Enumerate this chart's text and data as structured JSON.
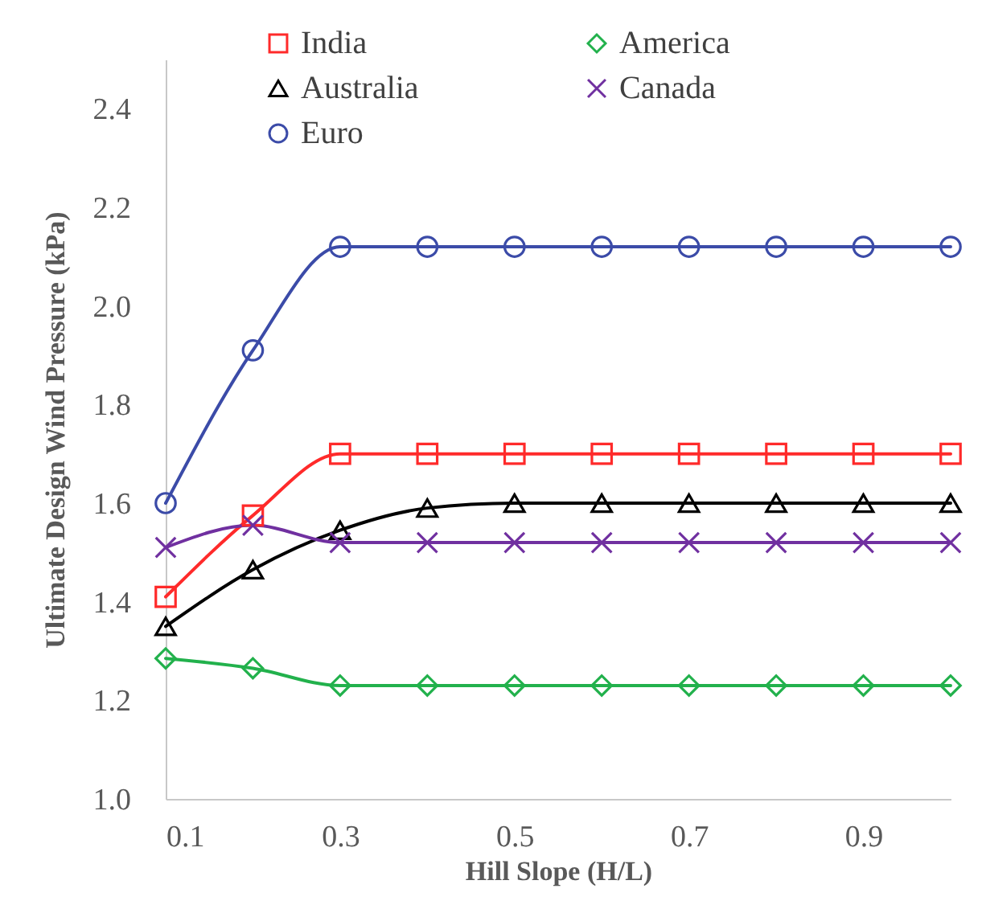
{
  "chart_data": {
    "type": "line",
    "xlabel": "Hill Slope (H/L)",
    "ylabel": "Ultimate Design Wind Pressure (kPa)",
    "x": [
      0.1,
      0.2,
      0.3,
      0.4,
      0.5,
      0.6,
      0.7,
      0.8,
      0.9,
      1.0
    ],
    "xlim": [
      0.1,
      1.0
    ],
    "xticks": [
      0.1,
      0.3,
      0.5,
      0.7,
      0.9
    ],
    "ylim": [
      1.0,
      2.5
    ],
    "yticks": [
      {
        "value": 1.0,
        "label": "1.0"
      },
      1.2,
      1.4,
      1.6,
      1.8,
      {
        "value": 2.0,
        "label": "2.0"
      },
      2.2,
      2.4
    ],
    "grid": false,
    "legend": "top",
    "series": [
      {
        "name": "India",
        "color": "#ff2a2a",
        "marker": "square",
        "values": [
          1.41,
          1.575,
          1.7,
          1.7,
          1.7,
          1.7,
          1.7,
          1.7,
          1.7,
          1.7
        ]
      },
      {
        "name": "America",
        "color": "#22b14c",
        "marker": "diamond",
        "values": [
          1.285,
          1.265,
          1.23,
          1.23,
          1.23,
          1.23,
          1.23,
          1.23,
          1.23,
          1.23
        ]
      },
      {
        "name": "Australia",
        "color": "#000000",
        "marker": "triangle",
        "values": [
          1.35,
          1.465,
          1.545,
          1.59,
          1.6,
          1.6,
          1.6,
          1.6,
          1.6,
          1.6
        ]
      },
      {
        "name": "Canada",
        "color": "#7030a0",
        "marker": "cross",
        "values": [
          1.51,
          1.555,
          1.52,
          1.52,
          1.52,
          1.52,
          1.52,
          1.52,
          1.52,
          1.52
        ]
      },
      {
        "name": "Euro",
        "color": "#3b4ba8",
        "marker": "circle",
        "values": [
          1.6,
          1.91,
          2.12,
          2.12,
          2.12,
          2.12,
          2.12,
          2.12,
          2.12,
          2.12
        ]
      }
    ]
  }
}
